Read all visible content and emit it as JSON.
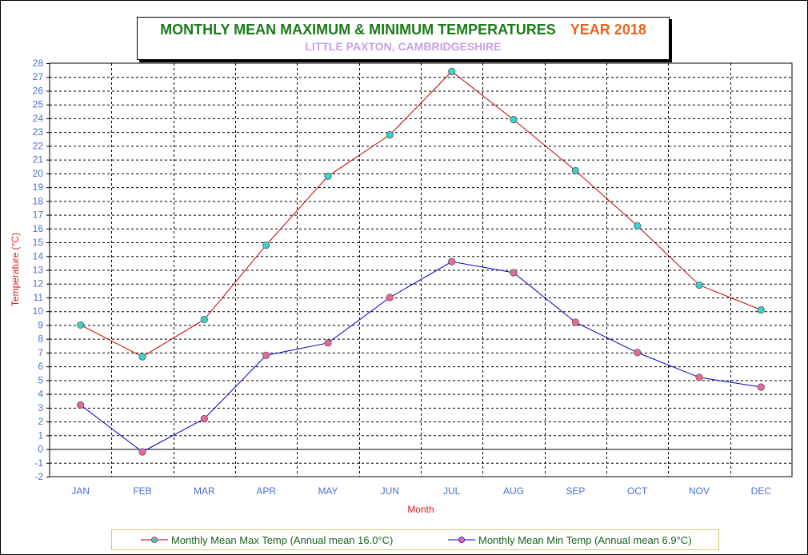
{
  "title": {
    "main": "MONTHLY  MEAN MAXIMUM & MINIMUM TEMPERATURES",
    "year": "YEAR 2018",
    "subtitle": "LITTLE PAXTON, CAMBRIDGESHIRE"
  },
  "colors": {
    "title_green": "#1a7a1a",
    "year_orange": "#e8641e",
    "subtitle_lilac": "#c8a0e6",
    "axis_label_red": "#e02020",
    "tick_blue": "#4a6fd0",
    "max_line": "#cc0000",
    "max_marker": "#33d6cc",
    "min_line": "#0000cc",
    "min_marker": "#ee6699"
  },
  "chart_data": {
    "type": "line",
    "categories": [
      "JAN",
      "FEB",
      "MAR",
      "APR",
      "MAY",
      "JUN",
      "JUL",
      "AUG",
      "SEP",
      "OCT",
      "NOV",
      "DEC"
    ],
    "series": [
      {
        "name": "Monthly Mean Max Temp (Annual mean 16.0°C)",
        "values": [
          9.0,
          6.7,
          9.4,
          14.8,
          19.8,
          22.8,
          27.4,
          23.9,
          20.2,
          16.2,
          11.9,
          10.1
        ]
      },
      {
        "name": "Monthly Mean Min Temp (Annual mean 6.9°C)",
        "values": [
          3.2,
          -0.2,
          2.2,
          6.8,
          7.7,
          11.0,
          13.6,
          12.8,
          9.2,
          7.0,
          5.2,
          4.5
        ]
      }
    ],
    "xlabel": "Month",
    "ylabel": "Temperature (°C)",
    "ylim": [
      -2,
      28
    ],
    "yticks": [
      "28",
      "27",
      "26",
      "25",
      "24",
      "23",
      "22",
      "21",
      "20",
      "19",
      "18",
      "17",
      "16",
      "15",
      "14",
      "13",
      "12",
      "11",
      "10",
      "9",
      "8",
      "7",
      "6",
      "5",
      "4",
      "3",
      "2",
      "1",
      "0",
      "-1",
      "-2"
    ],
    "grid": true,
    "legend_position": "bottom"
  }
}
